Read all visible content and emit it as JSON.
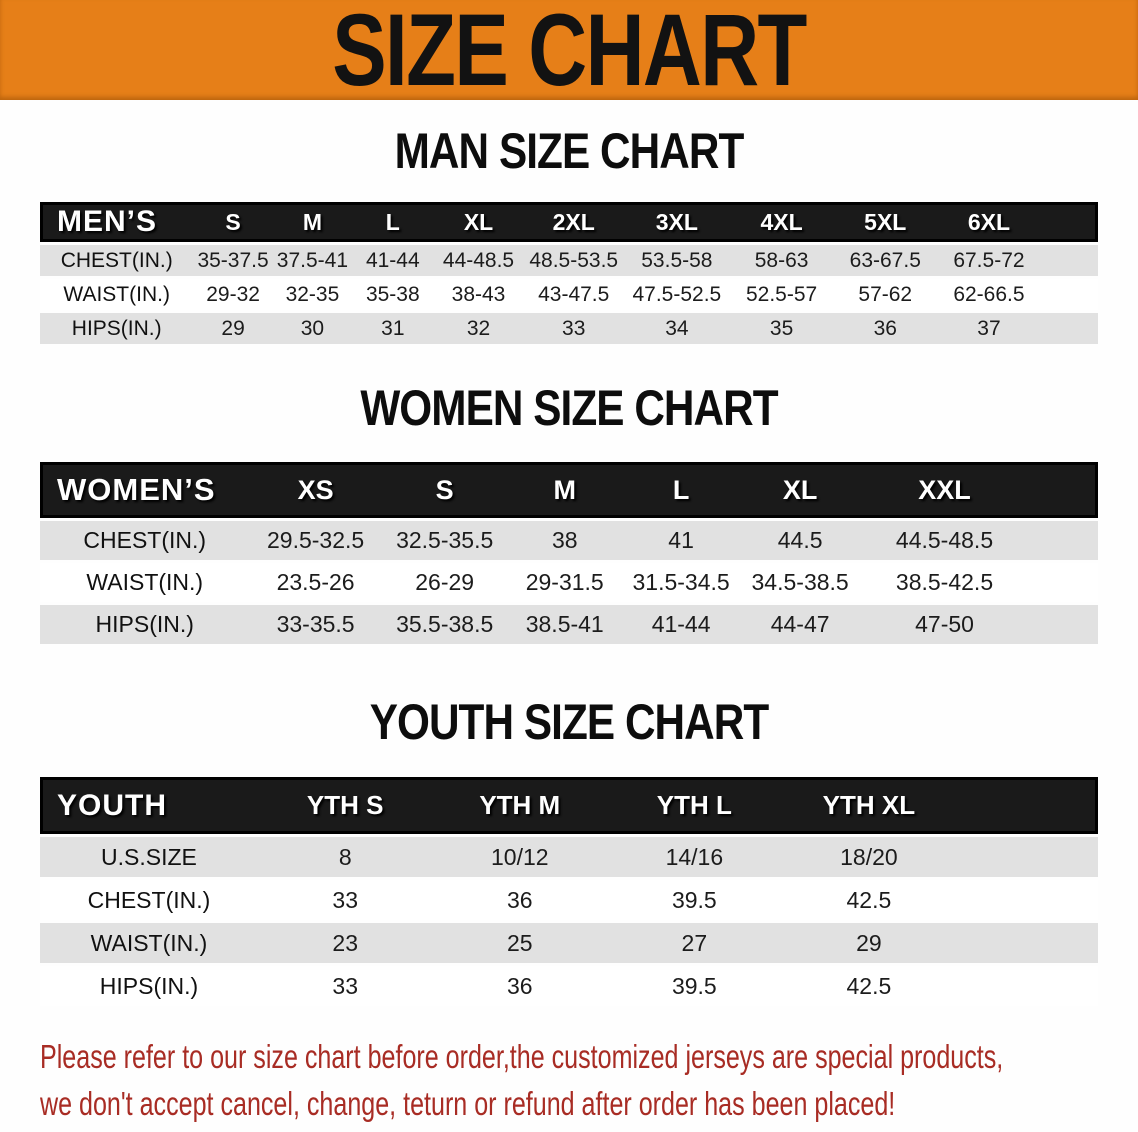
{
  "banner": {
    "title": "SIZE CHART"
  },
  "colors": {
    "banner_orange": "#E67F18",
    "header_black": "#1A1A1A",
    "row_gray": "#E1E1E1",
    "footer_red": "#A82C24"
  },
  "tables": [
    {
      "heading": "MAN SIZE CHART",
      "corner": "MEN’S",
      "columns": [
        "S",
        "M",
        "L",
        "XL",
        "2XL",
        "3XL",
        "4XL",
        "5XL",
        "6XL"
      ],
      "rows": [
        {
          "label": "CHEST(IN.)",
          "values": [
            "35-37.5",
            "37.5-41",
            "41-44",
            "44-48.5",
            "48.5-53.5",
            "53.5-58",
            "58-63",
            "63-67.5",
            "67.5-72"
          ]
        },
        {
          "label": "WAIST(IN.)",
          "values": [
            "29-32",
            "32-35",
            "35-38",
            "38-43",
            "43-47.5",
            "47.5-52.5",
            "52.5-57",
            "57-62",
            "62-66.5"
          ]
        },
        {
          "label": "HIPS(IN.)",
          "values": [
            "29",
            "30",
            "31",
            "32",
            "33",
            "34",
            "35",
            "36",
            "37"
          ]
        }
      ]
    },
    {
      "heading": "WOMEN SIZE CHART",
      "corner": "WOMEN’S",
      "columns": [
        "XS",
        "S",
        "M",
        "L",
        "XL",
        "XXL"
      ],
      "rows": [
        {
          "label": "CHEST(IN.)",
          "values": [
            "29.5-32.5",
            "32.5-35.5",
            "38",
            "41",
            "44.5",
            "44.5-48.5"
          ]
        },
        {
          "label": "WAIST(IN.)",
          "values": [
            "23.5-26",
            "26-29",
            "29-31.5",
            "31.5-34.5",
            "34.5-38.5",
            "38.5-42.5"
          ]
        },
        {
          "label": "HIPS(IN.)",
          "values": [
            "33-35.5",
            "35.5-38.5",
            "38.5-41",
            "41-44",
            "44-47",
            "47-50"
          ]
        }
      ]
    },
    {
      "heading": "YOUTH SIZE CHART",
      "corner": "YOUTH",
      "columns": [
        "YTH S",
        "YTH M",
        "YTH L",
        "YTH XL"
      ],
      "rows": [
        {
          "label": "U.S.SIZE",
          "values": [
            "8",
            "10/12",
            "14/16",
            "18/20"
          ]
        },
        {
          "label": "CHEST(IN.)",
          "values": [
            "33",
            "36",
            "39.5",
            "42.5"
          ]
        },
        {
          "label": "WAIST(IN.)",
          "values": [
            "23",
            "25",
            "27",
            "29"
          ]
        },
        {
          "label": "HIPS(IN.)",
          "values": [
            "33",
            "36",
            "39.5",
            "42.5"
          ]
        }
      ]
    }
  ],
  "footer": {
    "line1": "Please refer to our size chart before order,the customized jerseys are special products,",
    "line2": "we don't accept cancel, change, teturn or refund after order has been placed!"
  }
}
